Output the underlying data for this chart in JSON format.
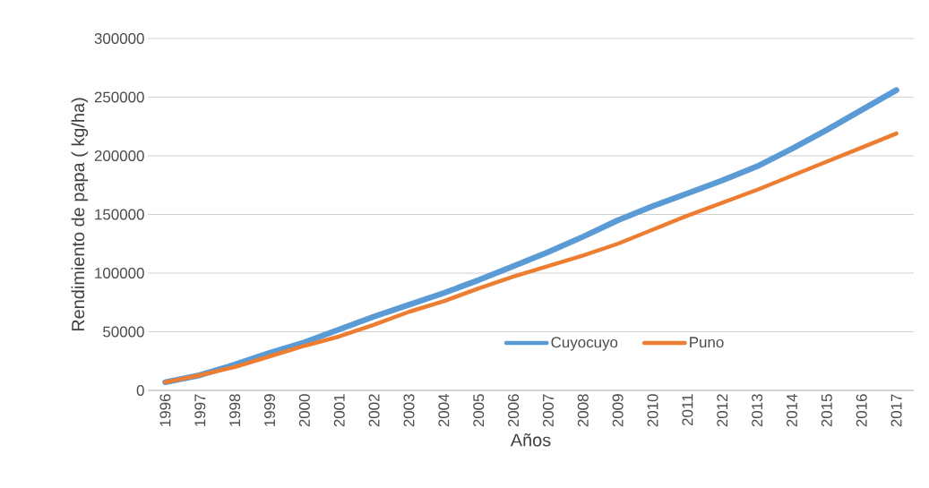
{
  "chart_data": {
    "type": "line",
    "xlabel": "Años",
    "ylabel": "Rendimiento de papa ( kg/ha)",
    "categories": [
      "1996",
      "1997",
      "1998",
      "1999",
      "2000",
      "2001",
      "2002",
      "2003",
      "2004",
      "2005",
      "2006",
      "2007",
      "2008",
      "2009",
      "2010",
      "2011",
      "2012",
      "2013",
      "2014",
      "2015",
      "2016",
      "2017"
    ],
    "series": [
      {
        "name": "Cuyocuyo",
        "color": "#5b9bd5",
        "values": [
          7000,
          13000,
          22000,
          32000,
          41000,
          52000,
          63000,
          73000,
          83000,
          94000,
          106000,
          118000,
          131000,
          145000,
          157000,
          168000,
          179000,
          191000,
          206000,
          222000,
          239000,
          256000
        ]
      },
      {
        "name": "Puno",
        "color": "#ed7d31",
        "values": [
          7000,
          13000,
          20000,
          29000,
          38000,
          46000,
          56000,
          67000,
          76000,
          87000,
          97000,
          106000,
          115000,
          125000,
          137000,
          149000,
          160000,
          171000,
          183000,
          195000,
          207000,
          219000
        ]
      }
    ],
    "ylim": [
      0,
      300000
    ],
    "yticks": [
      0,
      50000,
      100000,
      150000,
      200000,
      250000,
      300000
    ],
    "grid": "y",
    "legend": "bottom",
    "marker": "none",
    "line_style": "solid"
  }
}
